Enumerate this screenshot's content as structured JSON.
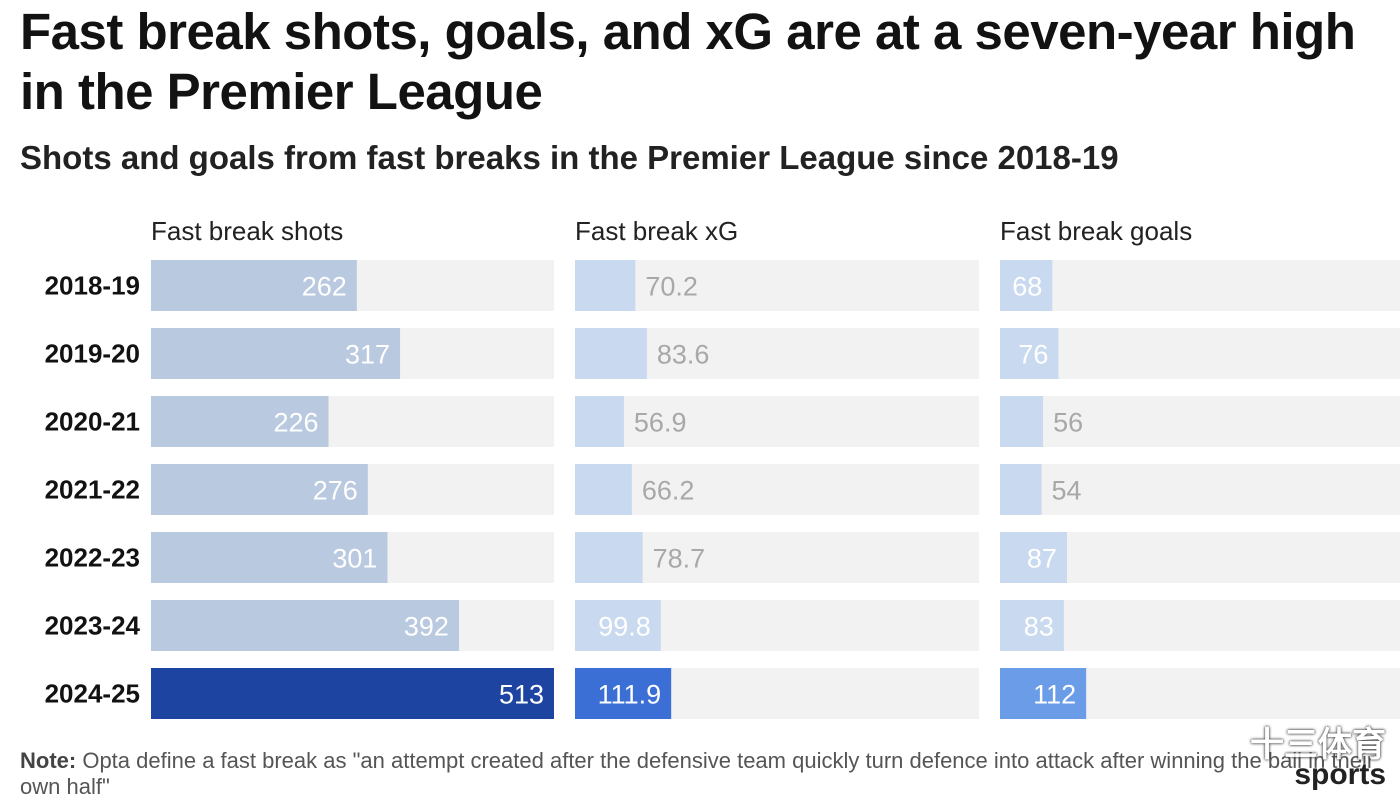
{
  "header": {
    "title": "Fast break shots, goals, and xG are at a seven-year high in the Premier League",
    "subtitle": "Shots and goals from fast breaks in the Premier League since 2018-19"
  },
  "note": {
    "label": "Note:",
    "text": " Opta define a fast break as \"an attempt created after the defensive team quickly turn defence into attack after winning the ball in their own half\""
  },
  "watermark": {
    "cn": "十三体育",
    "sports": "sports"
  },
  "colors": {
    "track": "#f2f2f2",
    "past": "#b9c9e0",
    "past_light": "#c9d9ef",
    "shots_highlight": "#1c44a0",
    "xg_highlight": "#3b6fd6",
    "goals_highlight": "#6a9ce8"
  },
  "chart_data": {
    "type": "bar",
    "orientation": "horizontal",
    "categories": [
      "2018-19",
      "2019-20",
      "2020-21",
      "2021-22",
      "2022-23",
      "2023-24",
      "2024-25"
    ],
    "highlight": "2024-25",
    "series": [
      {
        "name": "Fast break shots",
        "values": [
          262,
          317,
          226,
          276,
          301,
          392,
          513
        ],
        "labels": [
          "262",
          "317",
          "226",
          "276",
          "301",
          "392",
          "513"
        ],
        "max": 513
      },
      {
        "name": "Fast break xG",
        "values": [
          70.2,
          83.6,
          56.9,
          66.2,
          78.7,
          99.8,
          111.9
        ],
        "labels": [
          "70.2",
          "83.6",
          "56.9",
          "66.2",
          "78.7",
          "99.8",
          "111.9"
        ],
        "max": 470
      },
      {
        "name": "Fast break goals",
        "values": [
          68,
          76,
          56,
          54,
          87,
          83,
          112
        ],
        "labels": [
          "68",
          "76",
          "56",
          "54",
          "87",
          "83",
          "112"
        ],
        "max": 520
      }
    ]
  }
}
